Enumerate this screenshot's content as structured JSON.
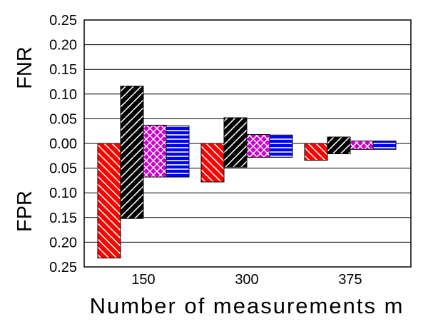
{
  "chart_data": {
    "type": "bar",
    "title": "",
    "xlabel": "Number of measurements m",
    "ylabel_upper": "FNR",
    "ylabel_lower": "FPR",
    "ylim": [
      -0.25,
      0.25
    ],
    "y_ticks": [
      {
        "value": 0.25,
        "label": "0.25"
      },
      {
        "value": 0.2,
        "label": "0.20"
      },
      {
        "value": 0.15,
        "label": "0.15"
      },
      {
        "value": 0.1,
        "label": "0.10"
      },
      {
        "value": 0.05,
        "label": "0.05"
      },
      {
        "value": 0.0,
        "label": "0.00"
      },
      {
        "value": -0.05,
        "label": "0.05"
      },
      {
        "value": -0.1,
        "label": "0.10"
      },
      {
        "value": -0.15,
        "label": "0.15"
      },
      {
        "value": -0.2,
        "label": "0.20"
      },
      {
        "value": -0.25,
        "label": "0.25"
      }
    ],
    "grid": true,
    "categories": [
      "150",
      "300",
      "375"
    ],
    "series": [
      {
        "fill": "#ff0000",
        "pattern": "diagonal-backslash-white",
        "fnr": [
          0.0,
          0.0,
          0.0
        ],
        "fpr": [
          0.232,
          0.078,
          0.034
        ]
      },
      {
        "fill": "#000000",
        "pattern": "diagonal-forward-white",
        "fnr": [
          0.116,
          0.052,
          0.013
        ],
        "fpr": [
          0.152,
          0.048,
          0.021
        ]
      },
      {
        "fill": "#cc00cc",
        "pattern": "crosshatch-white",
        "fnr": [
          0.037,
          0.018,
          0.005
        ],
        "fpr": [
          0.068,
          0.028,
          0.012
        ]
      },
      {
        "fill": "#0000ff",
        "pattern": "horizontal-white",
        "fnr": [
          0.036,
          0.017,
          0.005
        ],
        "fpr": [
          0.068,
          0.028,
          0.012
        ]
      }
    ]
  }
}
